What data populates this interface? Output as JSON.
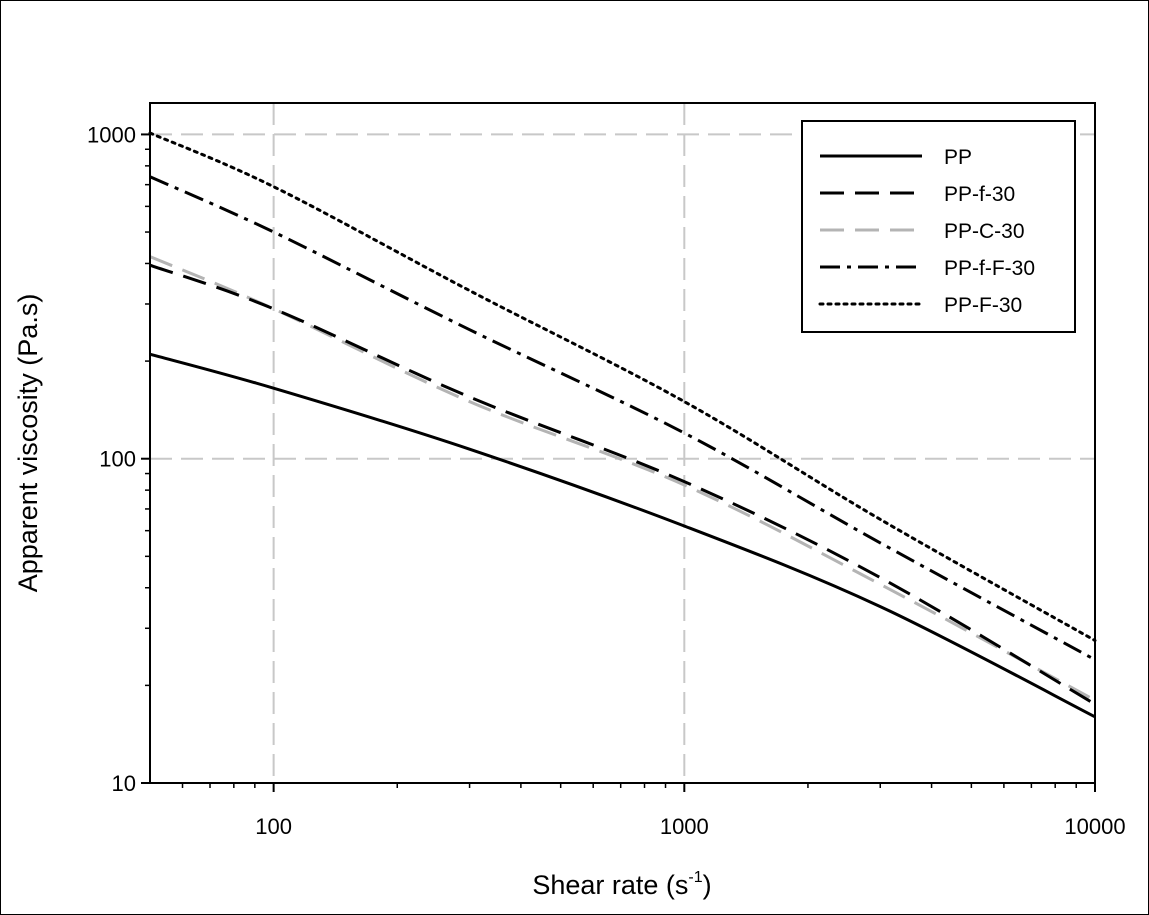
{
  "chart_data": {
    "type": "line",
    "xlabel": "Shear rate (s",
    "xlabel_sup": "-1",
    "xlabel_close": ")",
    "ylabel": "Apparent viscosity (Pa.s)",
    "xscale": "log",
    "yscale": "log",
    "xlim": [
      50,
      10000
    ],
    "ylim": [
      10,
      1250
    ],
    "xticks": [
      {
        "value": 100,
        "label": "100"
      },
      {
        "value": 1000,
        "label": "1000"
      },
      {
        "value": 10000,
        "label": "10000"
      }
    ],
    "yticks": [
      {
        "value": 10,
        "label": "10"
      },
      {
        "value": 100,
        "label": "100"
      },
      {
        "value": 1000,
        "label": "1000"
      }
    ],
    "grid": true,
    "legend_position": "top-right",
    "series": [
      {
        "name": "PP",
        "style": "solid",
        "color": "#000000",
        "x": [
          50,
          100,
          300,
          1000,
          3000,
          10000
        ],
        "y": [
          210,
          165,
          107,
          62,
          35,
          16
        ]
      },
      {
        "name": "PP-f-30",
        "style": "dashed",
        "color": "#000000",
        "x": [
          50,
          100,
          300,
          1000,
          3000,
          10000
        ],
        "y": [
          395,
          290,
          155,
          85,
          43,
          17.5
        ]
      },
      {
        "name": "PP-C-30",
        "style": "dashed",
        "color": "#b4b4b4",
        "x": [
          50,
          100,
          300,
          1000,
          3000,
          10000
        ],
        "y": [
          420,
          290,
          150,
          83,
          41,
          18
        ]
      },
      {
        "name": "PP-f-F-30",
        "style": "dashdot",
        "color": "#000000",
        "x": [
          50,
          100,
          300,
          1000,
          3000,
          10000
        ],
        "y": [
          740,
          500,
          250,
          120,
          55,
          24
        ]
      },
      {
        "name": "PP-F-30",
        "style": "dotted",
        "color": "#000000",
        "x": [
          50,
          100,
          300,
          1000,
          3000,
          10000
        ],
        "y": [
          1010,
          690,
          330,
          150,
          65,
          27.5
        ]
      }
    ]
  }
}
